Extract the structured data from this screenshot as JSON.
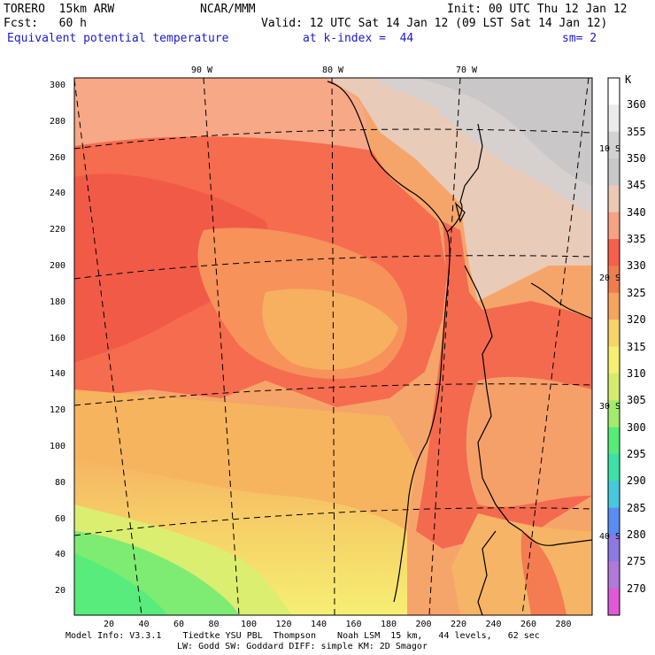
{
  "header": {
    "model": "TORERO  15km ARW",
    "org": "NCAR/MMM",
    "init": "Init: 00 UTC Thu 12 Jan 12",
    "fcst": "Fcst:   60 h",
    "valid": "Valid: 12 UTC Sat 14 Jan 12 (09 LST Sat 14 Jan 12)",
    "field": "Equivalent potential temperature",
    "level": "at k-index =  44",
    "smooth": "sm= 2"
  },
  "map": {
    "lon_labels": [
      "90 W",
      "80 W",
      "70 W"
    ],
    "lat_labels": [
      "10 S",
      "20 S",
      "30 S",
      "40 S"
    ],
    "x_ticks": [
      "20",
      "40",
      "60",
      "80",
      "100",
      "120",
      "140",
      "160",
      "180",
      "200",
      "220",
      "240",
      "260",
      "280"
    ],
    "y_ticks": [
      "300",
      "280",
      "260",
      "240",
      "220",
      "200",
      "180",
      "160",
      "140",
      "120",
      "100",
      "80",
      "60",
      "40",
      "20"
    ]
  },
  "colorbar": {
    "unit": "K",
    "levels": [
      "360",
      "355",
      "350",
      "345",
      "340",
      "335",
      "330",
      "325",
      "320",
      "315",
      "310",
      "305",
      "300",
      "295",
      "290",
      "285",
      "280",
      "275",
      "270"
    ],
    "colors": [
      "#ffffff",
      "#ebebeb",
      "#d2d2d2",
      "#c8c8c8",
      "#ecc9b4",
      "#f6a285",
      "#f4604c",
      "#f07d4d",
      "#f6a55e",
      "#f6d468",
      "#f5ef72",
      "#d3ec6e",
      "#a3eb6c",
      "#55ec79",
      "#3fe0a8",
      "#48c8dc",
      "#5b8cf0",
      "#8e78e4",
      "#b07ad8",
      "#e05ad8"
    ]
  },
  "footer": {
    "line1": "Model Info: V3.3.1    Tiedtke YSU PBL  Thompson    Noah LSM  15 km,   44 levels,   62 sec",
    "line2": "LW: Godd SW: Goddard DIFF: simple KM: 2D Smagor"
  }
}
